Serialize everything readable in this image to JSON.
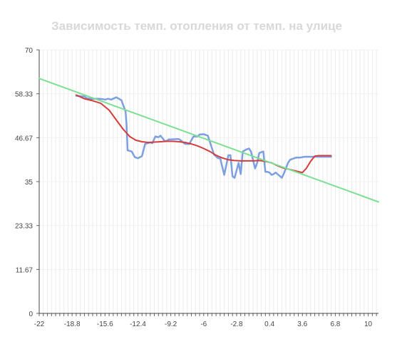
{
  "chart_data": {
    "type": "line",
    "title": "Зависимость темп. отопления от темп. на улице",
    "xlabel": "",
    "ylabel": "",
    "xlim": [
      -22,
      11
    ],
    "ylim": [
      0,
      70
    ],
    "x_ticks": [
      "-22",
      "-18.8",
      "-15.6",
      "-12.4",
      "-9.2",
      "-6",
      "-2.8",
      "0.4",
      "3.6",
      "6.8",
      "10"
    ],
    "y_ticks": [
      "0",
      "11.67",
      "23.33",
      "35",
      "46.67",
      "58.33",
      "70"
    ],
    "grid": "vertical",
    "legend": "none",
    "series": [
      {
        "color": "#7b9fe0",
        "x": [
          -18.4,
          -17.6,
          -17.4,
          -17.0,
          -16.2,
          -15.8,
          -15.6,
          -15.3,
          -15.0,
          -14.5,
          -14.0,
          -13.6,
          -13.5,
          -13.4,
          -13.0,
          -12.7,
          -12.4,
          -12.0,
          -11.7,
          -11.2,
          -11.0,
          -10.7,
          -10.4,
          -10.2,
          -9.8,
          -9.6,
          -9.4,
          -9.2,
          -8.6,
          -8.4,
          -7.8,
          -7.4,
          -7.0,
          -6.6,
          -6.4,
          -6.0,
          -5.6,
          -5.0,
          -4.6,
          -4.4,
          -4.0,
          -3.6,
          -3.4,
          -3.2,
          -3.0,
          -2.6,
          -2.4,
          -2.2,
          -1.8,
          -1.6,
          -1.4,
          -1.0,
          -0.8,
          -0.6,
          -0.2,
          0.0,
          0.2,
          0.4,
          0.6,
          0.8,
          1.0,
          1.4,
          1.6,
          1.8,
          2.2,
          2.4,
          2.8,
          3.0,
          3.4,
          3.8,
          4.0,
          4.4,
          4.8,
          5.2,
          5.6,
          6.0,
          6.4
        ],
        "y": [
          57.8,
          57.6,
          57.2,
          57.0,
          57.0,
          56.9,
          56.8,
          57.0,
          56.8,
          57.4,
          56.6,
          53.6,
          50.0,
          43.3,
          43.0,
          41.5,
          41.2,
          41.8,
          45.0,
          45.4,
          45.2,
          47.0,
          46.8,
          47.2,
          45.8,
          45.8,
          46.2,
          46.2,
          46.3,
          46.3,
          45.0,
          45.0,
          47.0,
          47.0,
          47.5,
          47.6,
          47.2,
          42.2,
          41.2,
          41.2,
          36.8,
          42.0,
          42.0,
          36.4,
          36.0,
          40.0,
          37.0,
          43.0,
          43.6,
          43.8,
          43.0,
          38.5,
          40.0,
          42.6,
          43.0,
          37.6,
          37.6,
          37.4,
          36.8,
          37.0,
          37.4,
          36.5,
          36.0,
          37.2,
          40.0,
          40.8,
          41.2,
          41.4,
          41.4,
          41.6,
          41.6,
          41.6,
          41.6,
          41.6,
          41.6,
          41.6,
          41.6
        ]
      },
      {
        "color": "#d63c3c",
        "x": [
          -18.4,
          -17.6,
          -16.8,
          -16.0,
          -15.2,
          -14.4,
          -13.8,
          -13.2,
          -12.6,
          -12.0,
          -11.4,
          -10.8,
          -10.2,
          -9.6,
          -9.0,
          -8.4,
          -7.8,
          -7.2,
          -6.6,
          -6.0,
          -5.4,
          -4.8,
          -4.2,
          -3.6,
          -3.0,
          -2.4,
          -1.8,
          -1.2,
          -0.6,
          0.0,
          0.6,
          1.2,
          1.8,
          2.4,
          3.0,
          3.6,
          4.0,
          4.4,
          4.8,
          5.2,
          5.6,
          6.0,
          6.4
        ],
        "y": [
          58.0,
          57.0,
          56.5,
          55.8,
          54.0,
          51.0,
          48.8,
          47.0,
          46.0,
          45.6,
          45.4,
          45.5,
          45.6,
          45.7,
          45.7,
          45.6,
          45.4,
          45.0,
          44.5,
          43.8,
          43.0,
          42.0,
          41.3,
          40.8,
          40.6,
          40.5,
          40.5,
          40.5,
          40.6,
          40.4,
          40.0,
          39.2,
          38.6,
          38.2,
          37.8,
          37.4,
          38.6,
          40.4,
          41.8,
          41.9,
          41.9,
          41.9,
          41.9
        ]
      },
      {
        "color": "#7ddf92",
        "x": [
          -22,
          11
        ],
        "y": [
          62.4,
          29.6
        ]
      }
    ]
  }
}
